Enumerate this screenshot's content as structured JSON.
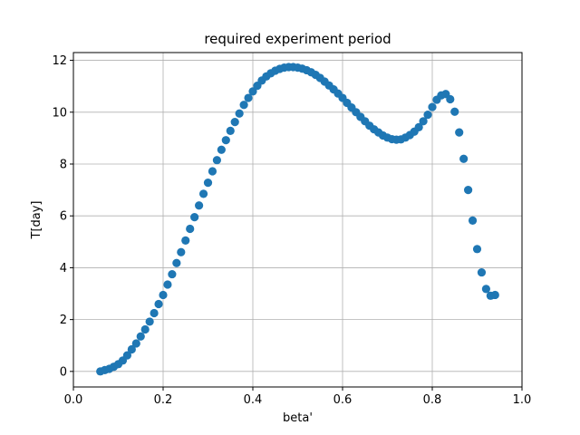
{
  "chart_data": {
    "type": "scatter",
    "title": "required experiment period",
    "xlabel": "beta'",
    "ylabel": "T[day]",
    "xlim": [
      0.0,
      1.0
    ],
    "ylim": [
      -0.6,
      12.3
    ],
    "xticks": [
      0.0,
      0.2,
      0.4,
      0.6,
      0.8,
      1.0
    ],
    "xtick_labels": [
      "0.0",
      "0.2",
      "0.4",
      "0.6",
      "0.8",
      "1.0"
    ],
    "yticks": [
      0,
      2,
      4,
      6,
      8,
      10,
      12
    ],
    "ytick_labels": [
      "0",
      "2",
      "4",
      "6",
      "8",
      "10",
      "12"
    ],
    "grid": true,
    "marker_color": "#1f77b4",
    "series": [
      {
        "x": [
          0.06,
          0.07,
          0.08,
          0.09,
          0.1,
          0.11,
          0.12,
          0.13,
          0.14,
          0.15,
          0.16,
          0.17,
          0.18,
          0.19,
          0.2,
          0.21,
          0.22,
          0.23,
          0.24,
          0.25,
          0.26,
          0.27,
          0.28,
          0.29,
          0.3,
          0.31,
          0.32,
          0.33,
          0.34,
          0.35,
          0.36,
          0.37,
          0.38,
          0.39,
          0.4,
          0.41,
          0.42,
          0.43,
          0.44,
          0.45,
          0.46,
          0.47,
          0.48,
          0.49,
          0.5,
          0.51,
          0.52,
          0.53,
          0.54,
          0.55,
          0.56,
          0.57,
          0.58,
          0.59,
          0.6,
          0.61,
          0.62,
          0.63,
          0.64,
          0.65,
          0.66,
          0.67,
          0.68,
          0.69,
          0.7,
          0.71,
          0.72,
          0.73,
          0.74,
          0.75,
          0.76,
          0.77,
          0.78,
          0.79,
          0.8,
          0.81,
          0.82,
          0.83,
          0.84,
          0.85,
          0.86,
          0.87,
          0.88,
          0.89,
          0.9,
          0.91,
          0.92,
          0.93,
          0.94
        ],
        "y": [
          0.0,
          0.05,
          0.1,
          0.18,
          0.28,
          0.42,
          0.62,
          0.85,
          1.08,
          1.35,
          1.62,
          1.92,
          2.25,
          2.6,
          2.95,
          3.35,
          3.75,
          4.18,
          4.6,
          5.05,
          5.5,
          5.95,
          6.4,
          6.85,
          7.28,
          7.72,
          8.15,
          8.55,
          8.92,
          9.28,
          9.62,
          9.95,
          10.28,
          10.55,
          10.8,
          11.02,
          11.22,
          11.38,
          11.5,
          11.6,
          11.67,
          11.72,
          11.74,
          11.74,
          11.72,
          11.68,
          11.62,
          11.54,
          11.44,
          11.32,
          11.18,
          11.03,
          10.88,
          10.72,
          10.55,
          10.36,
          10.18,
          10.0,
          9.82,
          9.65,
          9.48,
          9.34,
          9.22,
          9.1,
          9.02,
          8.96,
          8.94,
          8.95,
          9.02,
          9.12,
          9.25,
          9.42,
          9.65,
          9.9,
          10.2,
          10.48,
          10.65,
          10.7,
          10.5,
          10.02,
          9.22,
          8.2,
          7.0,
          5.82,
          4.72,
          3.82,
          3.18,
          2.92,
          2.95
        ]
      }
    ]
  }
}
